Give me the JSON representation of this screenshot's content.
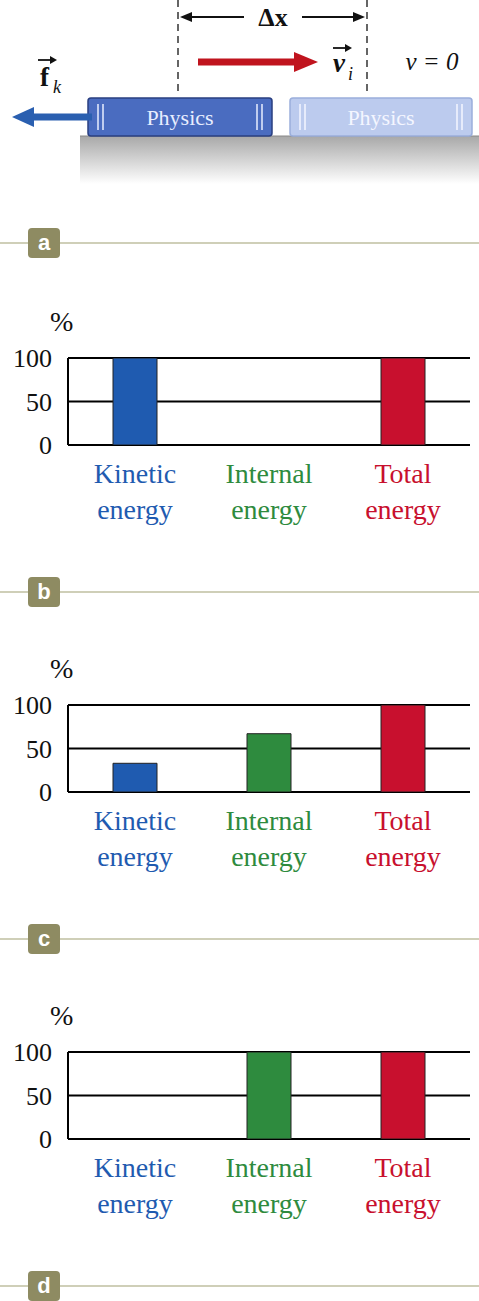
{
  "diagram": {
    "panel": "a",
    "distance": "Δx",
    "initial_velocity": {
      "symbol": "v",
      "subscript": "i"
    },
    "final_velocity": "v = 0",
    "friction": {
      "symbol": "f",
      "subscript": "k"
    },
    "book_label": "Physics"
  },
  "chart_data": [
    {
      "type": "bar",
      "title": "b",
      "y_label": "%",
      "categories": [
        "Kinetic energy",
        "Internal energy",
        "Total energy"
      ],
      "values": [
        100,
        0,
        100
      ],
      "colors": [
        "#1f5bb0",
        "#2e8b3e",
        "#c8102e"
      ],
      "ylim": [
        0,
        100
      ],
      "yticks": [
        0,
        50,
        100
      ],
      "grid": true
    },
    {
      "type": "bar",
      "title": "c",
      "y_label": "%",
      "categories": [
        "Kinetic energy",
        "Internal energy",
        "Total energy"
      ],
      "values": [
        33,
        67,
        100
      ],
      "colors": [
        "#1f5bb0",
        "#2e8b3e",
        "#c8102e"
      ],
      "ylim": [
        0,
        100
      ],
      "yticks": [
        0,
        50,
        100
      ],
      "grid": true
    },
    {
      "type": "bar",
      "title": "d",
      "y_label": "%",
      "categories": [
        "Kinetic energy",
        "Internal energy",
        "Total energy"
      ],
      "values": [
        0,
        100,
        100
      ],
      "colors": [
        "#1f5bb0",
        "#2e8b3e",
        "#c8102e"
      ],
      "ylim": [
        0,
        100
      ],
      "yticks": [
        0,
        50,
        100
      ],
      "grid": true
    }
  ]
}
